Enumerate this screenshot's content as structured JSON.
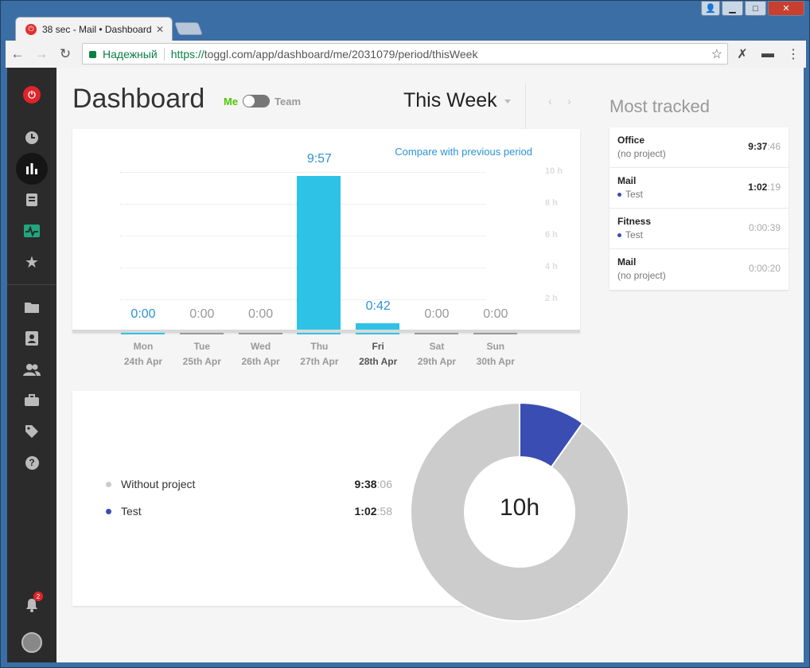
{
  "browser": {
    "tab_title": "38 sec - Mail • Dashboard",
    "tab_close": "✕",
    "secure_label": "Надежный",
    "url_proto": "https://",
    "url_host_path": "toggl.com/app/dashboard/me/2031079/period/thisWeek"
  },
  "sidebar": {
    "notification_count": "2",
    "items": [
      "timer",
      "dashboard",
      "reports",
      "insights",
      "starred",
      "projects",
      "clients",
      "team",
      "workspaces",
      "tags",
      "help"
    ]
  },
  "header": {
    "title": "Dashboard",
    "toggle_me": "Me",
    "toggle_team": "Team",
    "period": "This Week"
  },
  "chart_data": {
    "type": "bar",
    "link": "Compare with previous period",
    "categories": [
      "Mon",
      "Tue",
      "Wed",
      "Thu",
      "Fri",
      "Sat",
      "Sun"
    ],
    "dates": [
      "24th Apr",
      "25th Apr",
      "26th Apr",
      "27th Apr",
      "28th Apr",
      "29th Apr",
      "30th Apr"
    ],
    "values": [
      0,
      0,
      0,
      9.95,
      0.7,
      0,
      0
    ],
    "labels": [
      "0:00",
      "0:00",
      "0:00",
      "9:57",
      "0:42",
      "0:00",
      "0:00"
    ],
    "bar_colors": [
      "#2ec3e6",
      "#999999",
      "#999999",
      "#2ec3e6",
      "#2ec3e6",
      "#999999",
      "#999999"
    ],
    "label_highlight": [
      true,
      false,
      false,
      true,
      true,
      false,
      false
    ],
    "today_index": 4,
    "yticks": [
      "10 h",
      "8 h",
      "6 h",
      "4 h",
      "2 h"
    ],
    "ylim": [
      0,
      10
    ]
  },
  "projects": {
    "total": "10h",
    "items": [
      {
        "name": "Without project",
        "time": "9:38",
        "seconds": ":06",
        "color": "#cccccc",
        "hours": 9.635
      },
      {
        "name": "Test",
        "time": "1:02",
        "seconds": ":58",
        "color": "#3a4db3",
        "hours": 1.049
      }
    ]
  },
  "most_tracked": {
    "title": "Most tracked",
    "items": [
      {
        "name": "Office",
        "project": "(no project)",
        "time": "9:37",
        "seconds": ":46",
        "dim": false,
        "dot": false
      },
      {
        "name": "Mail",
        "project": "Test",
        "time": "1:02",
        "seconds": ":19",
        "dim": false,
        "dot": true
      },
      {
        "name": "Fitness",
        "project": "Test",
        "time": "0:00:39",
        "seconds": "",
        "dim": true,
        "dot": true
      },
      {
        "name": "Mail",
        "project": "(no project)",
        "time": "0:00:20",
        "seconds": "",
        "dim": true,
        "dot": false
      }
    ]
  }
}
